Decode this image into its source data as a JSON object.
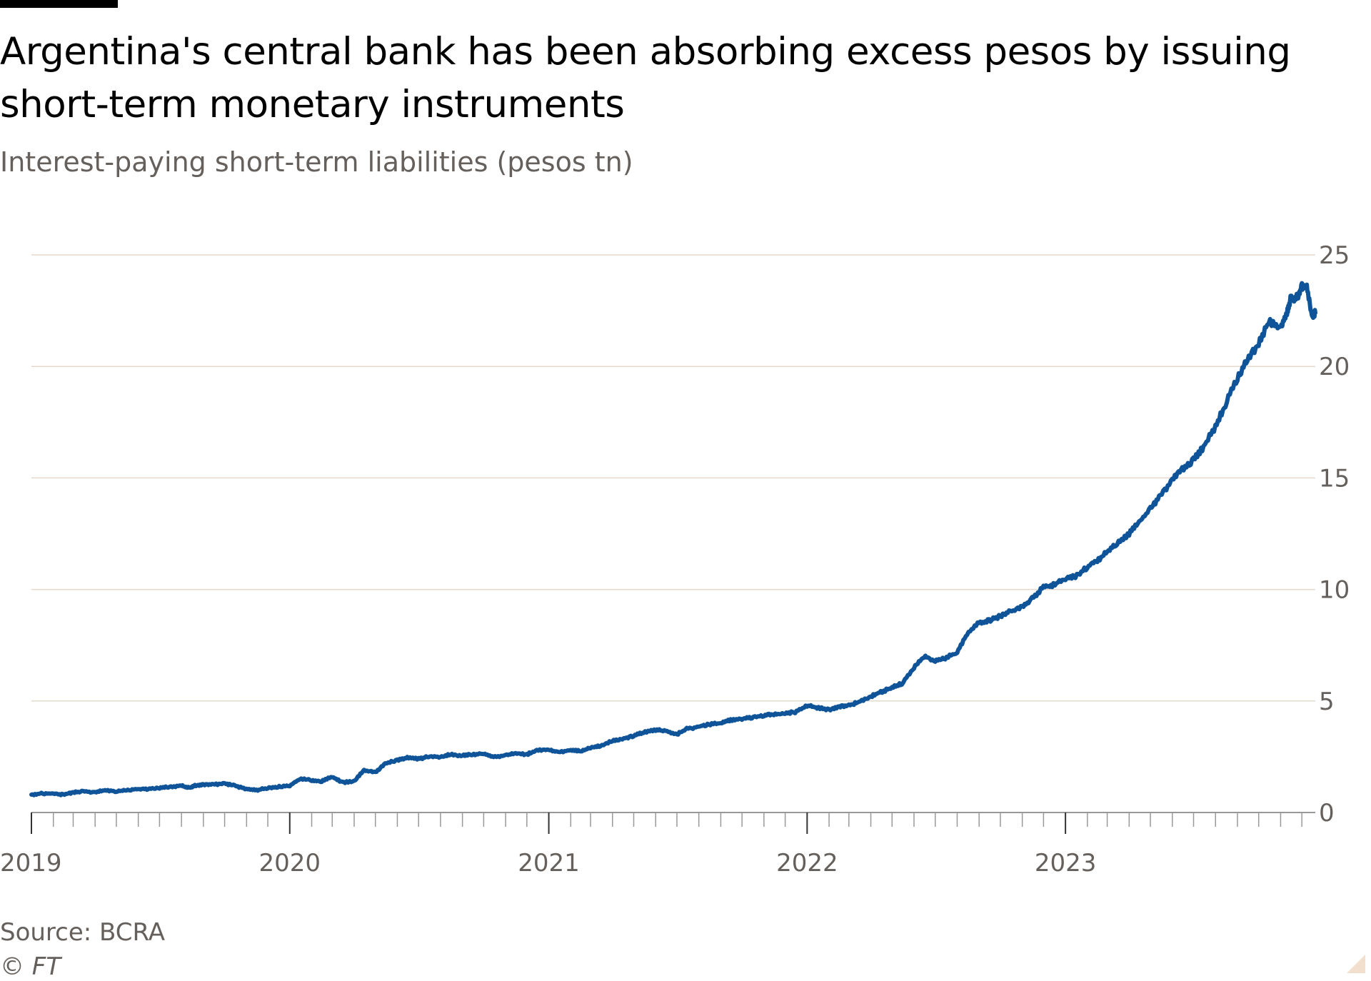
{
  "header": {
    "title": "Argentina's central bank has been absorbing excess pesos by issuing short-term monetary instruments",
    "subtitle": "Interest-paying short-term liabilities (pesos tn)"
  },
  "footer": {
    "source": "Source: BCRA",
    "copyright": "© FT"
  },
  "colors": {
    "line": "#0f5499",
    "grid": "#e6d9ce",
    "tick_text": "#66605c",
    "axis": "#999999"
  },
  "chart_data": {
    "type": "line",
    "title": "Argentina's central bank has been absorbing excess pesos by issuing short-term monetary instruments",
    "subtitle": "Interest-paying short-term liabilities (pesos tn)",
    "xlabel": "",
    "ylabel": "",
    "ylim": [
      0,
      25
    ],
    "yticks": [
      0,
      5,
      10,
      15,
      20,
      25
    ],
    "y_axis_position": "right",
    "xlim": [
      "2019-01-01",
      "2023-12-20"
    ],
    "xticks": [
      {
        "label": "2019",
        "date": "2019-01-01"
      },
      {
        "label": "2020",
        "date": "2020-01-01"
      },
      {
        "label": "2021",
        "date": "2021-01-01"
      },
      {
        "label": "2022",
        "date": "2022-01-01"
      },
      {
        "label": "2023",
        "date": "2023-01-01"
      }
    ],
    "grid": "horizontal",
    "legend": "none",
    "series": [
      {
        "x": [
          "2019-01-01",
          "2019-01-15",
          "2019-02-01",
          "2019-02-15",
          "2019-03-01",
          "2019-03-15",
          "2019-04-01",
          "2019-04-15",
          "2019-05-01",
          "2019-05-15",
          "2019-06-01",
          "2019-06-15",
          "2019-07-01",
          "2019-07-15",
          "2019-08-01",
          "2019-08-12",
          "2019-08-20",
          "2019-09-01",
          "2019-09-15",
          "2019-10-01",
          "2019-10-15",
          "2019-11-01",
          "2019-11-15",
          "2019-12-01",
          "2019-12-15",
          "2020-01-01",
          "2020-01-15",
          "2020-02-01",
          "2020-02-15",
          "2020-03-01",
          "2020-03-15",
          "2020-04-01",
          "2020-04-15",
          "2020-05-01",
          "2020-05-15",
          "2020-06-01",
          "2020-06-15",
          "2020-07-01",
          "2020-07-15",
          "2020-08-01",
          "2020-08-15",
          "2020-09-01",
          "2020-09-15",
          "2020-10-01",
          "2020-10-15",
          "2020-11-01",
          "2020-11-15",
          "2020-12-01",
          "2020-12-15",
          "2021-01-01",
          "2021-01-15",
          "2021-02-01",
          "2021-02-15",
          "2021-03-01",
          "2021-03-15",
          "2021-04-01",
          "2021-04-15",
          "2021-05-01",
          "2021-05-15",
          "2021-06-01",
          "2021-06-15",
          "2021-07-01",
          "2021-07-15",
          "2021-08-01",
          "2021-08-15",
          "2021-09-01",
          "2021-09-15",
          "2021-10-01",
          "2021-10-15",
          "2021-11-01",
          "2021-11-15",
          "2021-12-01",
          "2021-12-15",
          "2022-01-01",
          "2022-01-15",
          "2022-02-01",
          "2022-02-15",
          "2022-03-01",
          "2022-03-15",
          "2022-04-01",
          "2022-04-15",
          "2022-05-01",
          "2022-05-15",
          "2022-06-01",
          "2022-06-15",
          "2022-07-01",
          "2022-07-15",
          "2022-08-01",
          "2022-08-15",
          "2022-09-01",
          "2022-09-15",
          "2022-10-01",
          "2022-10-15",
          "2022-11-01",
          "2022-11-15",
          "2022-12-01",
          "2022-12-15",
          "2023-01-01",
          "2023-01-15",
          "2023-02-01",
          "2023-02-15",
          "2023-03-01",
          "2023-03-15",
          "2023-04-01",
          "2023-04-15",
          "2023-05-01",
          "2023-05-15",
          "2023-06-01",
          "2023-06-15",
          "2023-07-01",
          "2023-07-15",
          "2023-08-01",
          "2023-08-15",
          "2023-09-01",
          "2023-09-15",
          "2023-10-01",
          "2023-10-15",
          "2023-11-01",
          "2023-11-10",
          "2023-11-15",
          "2023-11-25",
          "2023-12-01",
          "2023-12-08",
          "2023-12-15",
          "2023-12-20"
        ],
        "y": [
          0.8,
          0.85,
          0.85,
          0.8,
          0.9,
          0.95,
          0.9,
          1.0,
          0.95,
          1.0,
          1.05,
          1.05,
          1.1,
          1.15,
          1.2,
          1.1,
          1.2,
          1.25,
          1.25,
          1.3,
          1.2,
          1.05,
          1.0,
          1.1,
          1.15,
          1.2,
          1.5,
          1.45,
          1.4,
          1.6,
          1.35,
          1.4,
          1.9,
          1.8,
          2.2,
          2.35,
          2.45,
          2.4,
          2.5,
          2.5,
          2.6,
          2.55,
          2.6,
          2.65,
          2.5,
          2.55,
          2.65,
          2.6,
          2.8,
          2.8,
          2.7,
          2.8,
          2.75,
          2.9,
          3.0,
          3.2,
          3.3,
          3.45,
          3.6,
          3.7,
          3.65,
          3.5,
          3.75,
          3.85,
          3.95,
          4.0,
          4.15,
          4.2,
          4.25,
          4.35,
          4.4,
          4.45,
          4.5,
          4.8,
          4.7,
          4.6,
          4.75,
          4.8,
          4.95,
          5.2,
          5.4,
          5.6,
          5.8,
          6.5,
          7.0,
          6.8,
          6.9,
          7.2,
          8.0,
          8.5,
          8.6,
          8.8,
          9.0,
          9.2,
          9.6,
          10.1,
          10.2,
          10.5,
          10.6,
          11.0,
          11.3,
          11.7,
          12.1,
          12.5,
          13.0,
          13.6,
          14.2,
          14.9,
          15.4,
          15.8,
          16.4,
          17.3,
          18.3,
          19.5,
          20.3,
          21.0,
          22.0,
          21.8,
          22.4,
          23.0,
          23.1,
          23.6,
          23.5,
          22.3,
          22.4
        ]
      }
    ]
  }
}
